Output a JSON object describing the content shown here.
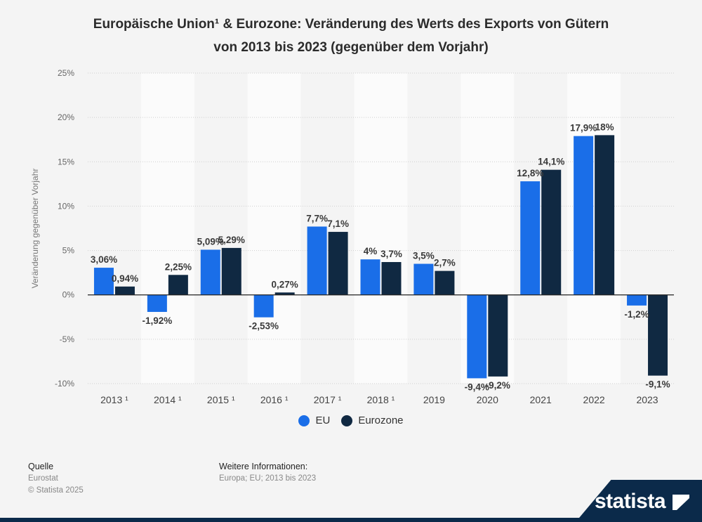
{
  "title": {
    "line1": "Europäische Union¹ & Eurozone: Veränderung des Werts des Exports von Gütern",
    "line2": "von 2013 bis 2023 (gegenüber dem Vorjahr)"
  },
  "chart_data": {
    "type": "bar",
    "ylabel": "Veränderung gegenüber Vorjahr",
    "ylim": [
      -10,
      25
    ],
    "yticks": [
      25,
      20,
      15,
      10,
      5,
      0,
      -5,
      -10
    ],
    "ytick_labels": [
      "25%",
      "20%",
      "15%",
      "10%",
      "5%",
      "0%",
      "-5%",
      "-10%"
    ],
    "categories": [
      "2013 ¹",
      "2014 ¹",
      "2015 ¹",
      "2016 ¹",
      "2017 ¹",
      "2018 ¹",
      "2019",
      "2020",
      "2021",
      "2022",
      "2023"
    ],
    "series": [
      {
        "name": "EU",
        "color": "#1a6ee8",
        "values": [
          3.06,
          -1.92,
          5.09,
          -2.53,
          7.7,
          4,
          3.5,
          -9.4,
          12.8,
          17.9,
          -1.2
        ],
        "labels": [
          "3,06%",
          "-1,92%",
          "5,09%",
          "-2,53%",
          "7,7%",
          "4%",
          "3,5%",
          "-9,4%",
          "12,8%",
          "17,9%",
          "-1,2%"
        ]
      },
      {
        "name": "Eurozone",
        "color": "#102942",
        "values": [
          0.94,
          2.25,
          5.29,
          0.27,
          7.1,
          3.7,
          2.7,
          -9.2,
          14.1,
          18,
          -9.1
        ],
        "labels": [
          "0,94%",
          "2,25%",
          "5,29%",
          "0,27%",
          "7,1%",
          "3,7%",
          "2,7%",
          "-9,2%",
          "14,1%",
          "18%",
          "-9,1%"
        ]
      }
    ],
    "legend": "bottom-center",
    "grid": true
  },
  "legend": {
    "eu": "EU",
    "eurozone": "Eurozone"
  },
  "footer": {
    "source_heading": "Quelle",
    "source_name": "Eurostat",
    "copyright": "© Statista 2025",
    "info_heading": "Weitere Informationen:",
    "info_text": "Europa; EU; 2013 bis 2023"
  },
  "brand": {
    "name": "statista"
  },
  "colors": {
    "eu": "#1a6ee8",
    "eurozone": "#102942",
    "brand": "#0b2a4a"
  }
}
